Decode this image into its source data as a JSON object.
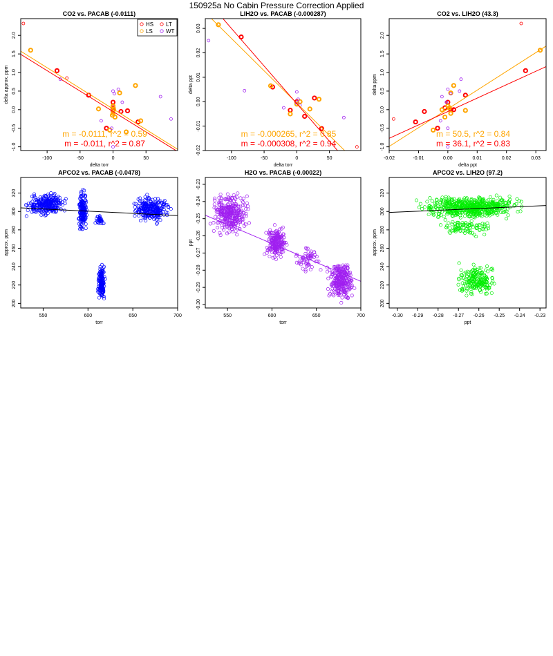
{
  "page_title": "150925a   No Cabin Pressure Correction Applied",
  "colors": {
    "HS": "#ff0000",
    "LS": "#ffa500",
    "LT": "#ff0000",
    "WT": "#a020f0",
    "fit_orange": "#ffa500",
    "fit_red": "#ff0000",
    "blue": "#0000ff",
    "purple": "#a020f0",
    "green": "#00ee00",
    "black": "#000000"
  },
  "chart_data": [
    {
      "type": "scatter",
      "title": "CO2 vs. PACAB (-0.0111)",
      "xlabel": "delta torr",
      "ylabel": "delta approx. ppm",
      "xlim": [
        -140,
        98
      ],
      "ylim": [
        -1.1,
        2.45
      ],
      "xticks": [
        -100,
        -50,
        0,
        50
      ],
      "xtick_labels": [
        "-100",
        "-50",
        "0",
        "50"
      ],
      "yticks": [
        -1.0,
        -0.5,
        0.0,
        0.5,
        1.0,
        1.5,
        2.0
      ],
      "ytick_labels": [
        "-1.0",
        "-0.5",
        "0.0",
        "0.5",
        "1.0",
        "1.5",
        "2.0"
      ],
      "legend": {
        "position": "top-right",
        "entries": [
          {
            "label": "HS",
            "color": "#ff0000"
          },
          {
            "label": "LT",
            "color": "#ff0000"
          },
          {
            "label": "LS",
            "color": "#ffa500"
          },
          {
            "label": "WT",
            "color": "#a020f0"
          }
        ]
      },
      "series": [
        {
          "name": "HS",
          "color": "#ff0000",
          "bold": true,
          "points": [
            [
              -85,
              1.05
            ],
            [
              -37,
              0.39
            ],
            [
              -10,
              -0.5
            ],
            [
              0,
              0.2
            ],
            [
              0,
              0.05
            ],
            [
              0,
              -0.02
            ],
            [
              12,
              -0.05
            ],
            [
              22,
              -0.03
            ],
            [
              38,
              -0.33
            ]
          ]
        },
        {
          "name": "LS",
          "color": "#ffa500",
          "bold": true,
          "points": [
            [
              -125,
              1.6
            ],
            [
              -22,
              0.02
            ],
            [
              -5,
              -0.55
            ],
            [
              0,
              0.1
            ],
            [
              1,
              0.0
            ],
            [
              0,
              -0.1
            ],
            [
              -1,
              -0.15
            ],
            [
              3,
              -0.2
            ],
            [
              10,
              0.45
            ],
            [
              20,
              -0.6
            ],
            [
              34,
              0.65
            ],
            [
              42,
              -0.3
            ]
          ]
        },
        {
          "name": "LT",
          "color": "#ff0000",
          "bold": false,
          "points": [
            [
              -136,
              2.32
            ],
            [
              -70,
              0.85
            ]
          ]
        },
        {
          "name": "WT",
          "color": "#a020f0",
          "bold": false,
          "points": [
            [
              -80,
              0.82
            ],
            [
              -18,
              -0.3
            ],
            [
              0,
              0.5
            ],
            [
              2,
              0.43
            ],
            [
              0,
              -1.0
            ],
            [
              -2,
              -0.5
            ],
            [
              8,
              0.55
            ],
            [
              14,
              0.2
            ],
            [
              72,
              0.35
            ],
            [
              88,
              -0.25
            ]
          ]
        }
      ],
      "fit_lines": [
        {
          "color": "#ffa500",
          "slope": -0.0111,
          "intercept": 0.02
        },
        {
          "color": "#ff0000",
          "slope": -0.011,
          "intercept": -0.05
        }
      ],
      "annotations": [
        {
          "text": "m = -0.0111, r^2 = 0.59",
          "color": "#ffa500"
        },
        {
          "text": "m = -0.011, r^2 = 0.87",
          "color": "#ff0000"
        }
      ]
    },
    {
      "type": "scatter",
      "title": "LIH2O vs. PACAB (-0.000287)",
      "xlabel": "delta torr",
      "ylabel": "delta ppt",
      "xlim": [
        -140,
        98
      ],
      "ylim": [
        -0.02,
        0.034
      ],
      "xticks": [
        -100,
        -50,
        0,
        50
      ],
      "xtick_labels": [
        "-100",
        "-50",
        "0",
        "50"
      ],
      "yticks": [
        -0.02,
        -0.01,
        0.0,
        0.01,
        0.02,
        0.03
      ],
      "ytick_labels": [
        "-0.02",
        "-0.01",
        "0.00",
        "0.01",
        "0.02",
        "0.03"
      ],
      "series": [
        {
          "name": "HS",
          "color": "#ff0000",
          "bold": true,
          "points": [
            [
              -85,
              0.0265
            ],
            [
              -37,
              0.006
            ],
            [
              -10,
              -0.0035
            ],
            [
              0,
              0.0
            ],
            [
              12,
              -0.006
            ],
            [
              27,
              0.0015
            ],
            [
              38,
              -0.011
            ]
          ]
        },
        {
          "name": "LS",
          "color": "#ffa500",
          "bold": true,
          "points": [
            [
              -120,
              0.0315
            ],
            [
              -40,
              0.0065
            ],
            [
              -10,
              -0.005
            ],
            [
              0,
              -0.001
            ],
            [
              5,
              0.0
            ],
            [
              20,
              -0.003
            ],
            [
              34,
              0.001
            ]
          ]
        },
        {
          "name": "LT",
          "color": "#ff0000",
          "bold": false,
          "points": [
            [
              92,
              -0.0185
            ]
          ]
        },
        {
          "name": "WT",
          "color": "#a020f0",
          "bold": false,
          "points": [
            [
              -135,
              0.025
            ],
            [
              -80,
              0.0045
            ],
            [
              -20,
              -0.0025
            ],
            [
              0,
              0.004
            ],
            [
              2,
              0.001
            ],
            [
              0,
              -0.0005
            ],
            [
              5,
              -0.0015
            ],
            [
              72,
              -0.0065
            ]
          ]
        }
      ],
      "fit_lines": [
        {
          "color": "#ffa500",
          "slope": -0.000265,
          "intercept": -0.0006
        },
        {
          "color": "#ff0000",
          "slope": -0.000308,
          "intercept": -0.0008
        }
      ],
      "annotations": [
        {
          "text": "m = -0.000265, r^2 = 0.85",
          "color": "#ffa500"
        },
        {
          "text": "m = -0.000308, r^2 = 0.94",
          "color": "#ff0000"
        }
      ]
    },
    {
      "type": "scatter",
      "title": "CO2 vs. LIH2O (43.3)",
      "xlabel": "delta ppt",
      "ylabel": "delta ppm",
      "xlim": [
        -0.02,
        0.0335
      ],
      "ylim": [
        -1.1,
        2.45
      ],
      "xticks": [
        -0.02,
        -0.01,
        0.0,
        0.01,
        0.02,
        0.03
      ],
      "xtick_labels": [
        "-0.02",
        "-0.01",
        "0.00",
        "0.01",
        "0.02",
        "0.03"
      ],
      "yticks": [
        -1.0,
        -0.5,
        0.0,
        0.5,
        1.0,
        1.5,
        2.0
      ],
      "ytick_labels": [
        "-1.0",
        "-0.5",
        "0.0",
        "0.5",
        "1.0",
        "1.5",
        "2.0"
      ],
      "series": [
        {
          "name": "HS",
          "color": "#ff0000",
          "bold": true,
          "points": [
            [
              0.0265,
              1.05
            ],
            [
              0.006,
              0.39
            ],
            [
              -0.0035,
              -0.5
            ],
            [
              0.0,
              0.2
            ],
            [
              0.001,
              0.0
            ],
            [
              -0.008,
              -0.05
            ],
            [
              -0.011,
              -0.33
            ],
            [
              -0.001,
              0.05
            ],
            [
              0.002,
              0.0
            ]
          ]
        },
        {
          "name": "LS",
          "color": "#ffa500",
          "bold": true,
          "points": [
            [
              0.0315,
              1.6
            ],
            [
              0.006,
              -0.02
            ],
            [
              -0.005,
              -0.55
            ],
            [
              0.0,
              0.1
            ],
            [
              0.001,
              -0.1
            ],
            [
              -0.001,
              -0.2
            ],
            [
              0.001,
              0.45
            ],
            [
              0.002,
              0.65
            ],
            [
              -0.002,
              0.0
            ],
            [
              0.0005,
              0.05
            ]
          ]
        },
        {
          "name": "LT",
          "color": "#ff0000",
          "bold": false,
          "points": [
            [
              0.025,
              2.32
            ],
            [
              -0.0185,
              -0.25
            ]
          ]
        },
        {
          "name": "WT",
          "color": "#a020f0",
          "bold": false,
          "points": [
            [
              0.0045,
              0.82
            ],
            [
              -0.0025,
              -0.3
            ],
            [
              0.004,
              0.5
            ],
            [
              0.001,
              0.43
            ],
            [
              0.0,
              -0.5
            ],
            [
              0.0,
              0.55
            ],
            [
              -0.0005,
              0.2
            ],
            [
              -0.002,
              0.35
            ],
            [
              0.0,
              -1.0
            ]
          ]
        }
      ],
      "fit_lines": [
        {
          "color": "#ffa500",
          "slope": 50.5,
          "intercept": 0.02
        },
        {
          "color": "#ff0000",
          "slope": 36.1,
          "intercept": -0.05
        }
      ],
      "annotations": [
        {
          "text": "m = 50.5, r^2 = 0.84",
          "color": "#ffa500"
        },
        {
          "text": "m = 36.1, r^2 = 0.83",
          "color": "#ff0000"
        }
      ]
    },
    {
      "type": "scatter",
      "title": "APCO2 vs. PACAB (-0.0478)",
      "xlabel": "torr",
      "ylabel": "approx. ppm",
      "xlim": [
        525,
        700
      ],
      "ylim": [
        195,
        337
      ],
      "xticks": [
        550,
        600,
        650,
        700
      ],
      "xtick_labels": [
        "550",
        "600",
        "650",
        "700"
      ],
      "yticks": [
        200,
        220,
        240,
        260,
        280,
        300,
        320
      ],
      "ytick_labels": [
        "200",
        "220",
        "240",
        "260",
        "280",
        "300",
        "320"
      ],
      "color": "#0000ff",
      "clusters": [
        {
          "x": [
            527,
            580
          ],
          "y": [
            293,
            322
          ],
          "n": 260
        },
        {
          "x": [
            588,
            600
          ],
          "y": [
            272,
            328
          ],
          "n": 170
        },
        {
          "x": [
            607,
            618
          ],
          "y": [
            283,
            298
          ],
          "n": 30
        },
        {
          "x": [
            610,
            620
          ],
          "y": [
            200,
            245
          ],
          "n": 170
        },
        {
          "x": [
            645,
            695
          ],
          "y": [
            285,
            320
          ],
          "n": 260
        }
      ],
      "fit_line": {
        "color": "#000000",
        "slope": -0.0478,
        "intercept": 329.0
      }
    },
    {
      "type": "scatter",
      "title": "H2O vs. PACAB (-0.00022)",
      "xlabel": "torr",
      "ylabel": "ppt",
      "xlim": [
        525,
        700
      ],
      "ylim": [
        -0.302,
        -0.226
      ],
      "xticks": [
        550,
        600,
        650,
        700
      ],
      "xtick_labels": [
        "550",
        "600",
        "650",
        "700"
      ],
      "yticks": [
        -0.3,
        -0.29,
        -0.28,
        -0.27,
        -0.26,
        -0.25,
        -0.24,
        -0.23
      ],
      "ytick_labels": [
        "-0.30",
        "-0.29",
        "-0.28",
        "-0.27",
        "-0.26",
        "-0.25",
        "-0.24",
        "-0.23"
      ],
      "color": "#a020f0",
      "clusters": [
        {
          "x": [
            527,
            580
          ],
          "y": [
            -0.262,
            -0.232
          ],
          "n": 320
        },
        {
          "x": [
            590,
            620
          ],
          "y": [
            -0.276,
            -0.252
          ],
          "n": 200
        },
        {
          "x": [
            620,
            660
          ],
          "y": [
            -0.283,
            -0.265
          ],
          "n": 60
        },
        {
          "x": [
            660,
            695
          ],
          "y": [
            -0.3,
            -0.272
          ],
          "n": 280
        }
      ],
      "fit_line": {
        "color": "#a020f0",
        "slope": -0.00022,
        "intercept": -0.1325
      }
    },
    {
      "type": "scatter",
      "title": "APCO2 vs. LIH2O (97.2)",
      "xlabel": "ppt",
      "ylabel": "approx. ppm",
      "xlim": [
        -0.304,
        -0.227
      ],
      "ylim": [
        195,
        337
      ],
      "xticks": [
        -0.3,
        -0.29,
        -0.28,
        -0.27,
        -0.26,
        -0.25,
        -0.24,
        -0.23
      ],
      "xtick_labels": [
        "-0.30",
        "-0.29",
        "-0.28",
        "-0.27",
        "-0.26",
        "-0.25",
        "-0.24",
        "-0.23"
      ],
      "yticks": [
        200,
        220,
        240,
        260,
        280,
        300,
        320
      ],
      "ytick_labels": [
        "200",
        "220",
        "240",
        "260",
        "280",
        "300",
        "320"
      ],
      "color": "#00ee00",
      "clusters": [
        {
          "x": [
            -0.293,
            -0.234
          ],
          "y": [
            290,
            320
          ],
          "n": 560
        },
        {
          "x": [
            -0.282,
            -0.252
          ],
          "y": [
            270,
            295
          ],
          "n": 90
        },
        {
          "x": [
            -0.273,
            -0.25
          ],
          "y": [
            205,
            245
          ],
          "n": 190
        }
      ],
      "fit_line": {
        "color": "#000000",
        "slope": 97.2,
        "intercept": 328.5
      }
    }
  ]
}
